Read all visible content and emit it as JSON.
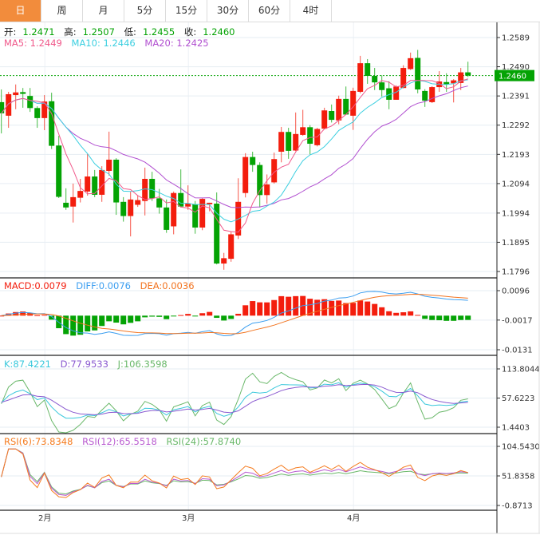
{
  "tabs": [
    {
      "label": "日",
      "active": true
    },
    {
      "label": "周",
      "active": false
    },
    {
      "label": "月",
      "active": false
    },
    {
      "label": "5分",
      "active": false
    },
    {
      "label": "15分",
      "active": false
    },
    {
      "label": "30分",
      "active": false
    },
    {
      "label": "60分",
      "active": false
    },
    {
      "label": "4时",
      "active": false
    }
  ],
  "ohlc_legend": {
    "open_label": "开:",
    "open": "1.2471",
    "high_label": "高:",
    "high": "1.2507",
    "low_label": "低:",
    "low": "1.2455",
    "close_label": "收:",
    "close": "1.2460"
  },
  "ma_legend": {
    "ma5": "MA5: 1.2449",
    "ma10": "MA10: 1.2446",
    "ma20": "MA20: 1.2425"
  },
  "macd_legend": {
    "macd": "MACD:0.0079",
    "diff": "DIFF:0.0076",
    "dea": "DEA:0.0036"
  },
  "kdj_legend": {
    "k": "K:87.4221",
    "d": "D:77.9533",
    "j": "J:106.3598"
  },
  "rsi_legend": {
    "rsi6": "RSI(6):73.8348",
    "rsi12": "RSI(12):65.5518",
    "rsi24": "RSI(24):57.8740"
  },
  "current_price": "1.2460",
  "colors": {
    "up": "#f31d0d",
    "down": "#04a304",
    "tab_active": "#f28c3c",
    "ma5": "#f0588a",
    "ma10": "#3ccfe0",
    "ma20": "#b14fd0",
    "diff": "#3b9ef0",
    "dea": "#f27420",
    "k": "#3ac8dc",
    "d": "#8a5ad0",
    "j": "#6ab86a",
    "rsi6": "#f57c20",
    "rsi12": "#b85ad0",
    "rsi24": "#6ab86a"
  },
  "chart_data": {
    "type": "candlestick",
    "up_color_meaning": "red = close above open, green = close below open",
    "price_axis": {
      "ticks": [
        "1.2589",
        "1.2490",
        "1.2391",
        "1.2292",
        "1.2193",
        "1.2094",
        "1.1994",
        "1.1895",
        "1.1796"
      ],
      "ylim": [
        1.1774,
        1.264
      ]
    },
    "macd_axis": {
      "ticks": [
        "0.0096",
        "-0.0017",
        "-0.0131"
      ]
    },
    "kdj_axis": {
      "ticks": [
        "113.8044",
        "57.6223",
        "1.4403"
      ]
    },
    "rsi_axis": {
      "ticks": [
        "104.5430",
        "51.8358",
        "-0.8713"
      ]
    },
    "x_labels": [
      {
        "label": "2月",
        "index": 6
      },
      {
        "label": "3月",
        "index": 26
      },
      {
        "label": "4月",
        "index": 49
      }
    ],
    "candles_ohlc": [
      [
        1.237,
        1.2413,
        1.2264,
        1.2332
      ],
      [
        1.2324,
        1.2405,
        1.2283,
        1.2397
      ],
      [
        1.2394,
        1.243,
        1.2346,
        1.2403
      ],
      [
        1.2404,
        1.2418,
        1.2351,
        1.2398
      ],
      [
        1.2391,
        1.2418,
        1.2337,
        1.235
      ],
      [
        1.235,
        1.2356,
        1.2283,
        1.2316
      ],
      [
        1.2316,
        1.2394,
        1.2275,
        1.2372
      ],
      [
        1.2373,
        1.2402,
        1.2211,
        1.2222
      ],
      [
        1.2223,
        1.2256,
        1.2045,
        1.2049
      ],
      [
        1.2029,
        1.2078,
        1.2005,
        1.2013
      ],
      [
        1.2016,
        1.2094,
        1.1962,
        1.2048
      ],
      [
        1.2046,
        1.211,
        1.203,
        1.2069
      ],
      [
        1.2067,
        1.2194,
        1.2053,
        1.2118
      ],
      [
        1.2118,
        1.214,
        1.2048,
        1.2056
      ],
      [
        1.2056,
        1.2153,
        1.2032,
        1.214
      ],
      [
        1.2137,
        1.227,
        1.2121,
        1.2175
      ],
      [
        1.2175,
        1.218,
        1.1988,
        1.203
      ],
      [
        1.2032,
        1.2048,
        1.1965,
        1.1984
      ],
      [
        1.1984,
        1.2067,
        1.1915,
        1.204
      ],
      [
        1.2022,
        1.2053,
        1.2015,
        1.2038
      ],
      [
        1.2035,
        1.2148,
        1.1986,
        1.211
      ],
      [
        1.211,
        1.2134,
        1.2035,
        1.2044
      ],
      [
        1.2044,
        1.2076,
        1.1992,
        1.2013
      ],
      [
        1.2013,
        1.204,
        1.1927,
        1.1937
      ],
      [
        1.1949,
        1.2067,
        1.1922,
        1.2062
      ],
      [
        1.2062,
        1.2142,
        1.2013,
        1.2016
      ],
      [
        1.2016,
        1.2088,
        1.2005,
        1.2026
      ],
      [
        1.2024,
        1.2035,
        1.1924,
        1.1945
      ],
      [
        1.1945,
        1.2044,
        1.1936,
        1.2042
      ],
      [
        1.2024,
        1.2029,
        1.2,
        1.2029
      ],
      [
        1.2026,
        1.2064,
        1.182,
        1.1823
      ],
      [
        1.1823,
        1.1859,
        1.1802,
        1.1841
      ],
      [
        1.1839,
        1.1931,
        1.1829,
        1.1922
      ],
      [
        1.1918,
        1.2112,
        1.1906,
        1.2032
      ],
      [
        1.2062,
        1.2197,
        1.2047,
        1.2184
      ],
      [
        1.2184,
        1.2202,
        1.2134,
        1.2157
      ],
      [
        1.2157,
        1.2166,
        1.2013,
        1.2055
      ],
      [
        1.2055,
        1.2125,
        1.2026,
        1.2091
      ],
      [
        1.2098,
        1.2199,
        1.2094,
        1.2177
      ],
      [
        1.2202,
        1.2286,
        1.2166,
        1.2269
      ],
      [
        1.2269,
        1.2283,
        1.2178,
        1.2205
      ],
      [
        1.2206,
        1.2335,
        1.2204,
        1.2262
      ],
      [
        1.2259,
        1.2344,
        1.2256,
        1.2285
      ],
      [
        1.2285,
        1.2292,
        1.2193,
        1.2229
      ],
      [
        1.2224,
        1.2283,
        1.222,
        1.2279
      ],
      [
        1.228,
        1.2351,
        1.2278,
        1.2342
      ],
      [
        1.234,
        1.2362,
        1.2301,
        1.231
      ],
      [
        1.2308,
        1.2392,
        1.2295,
        1.2381
      ],
      [
        1.2381,
        1.2423,
        1.2327,
        1.2328
      ],
      [
        1.2324,
        1.2419,
        1.2276,
        1.2408
      ],
      [
        1.2405,
        1.2527,
        1.24,
        1.2502
      ],
      [
        1.2502,
        1.2516,
        1.2432,
        1.2459
      ],
      [
        1.2459,
        1.2486,
        1.2411,
        1.2437
      ],
      [
        1.2437,
        1.2461,
        1.2389,
        1.2411
      ],
      [
        1.2417,
        1.2441,
        1.2346,
        1.2378
      ],
      [
        1.2378,
        1.2427,
        1.2378,
        1.2423
      ],
      [
        1.2418,
        1.2495,
        1.2417,
        1.2486
      ],
      [
        1.2482,
        1.2538,
        1.2479,
        1.2519
      ],
      [
        1.252,
        1.2547,
        1.24,
        1.2413
      ],
      [
        1.2408,
        1.2414,
        1.2354,
        1.2375
      ],
      [
        1.237,
        1.2424,
        1.2367,
        1.2421
      ],
      [
        1.2421,
        1.2475,
        1.2405,
        1.244
      ],
      [
        1.2438,
        1.2468,
        1.2405,
        1.243
      ],
      [
        1.2434,
        1.2448,
        1.2369,
        1.2444
      ],
      [
        1.2435,
        1.2486,
        1.2411,
        1.2471
      ],
      [
        1.2471,
        1.2507,
        1.2455,
        1.246
      ]
    ]
  }
}
